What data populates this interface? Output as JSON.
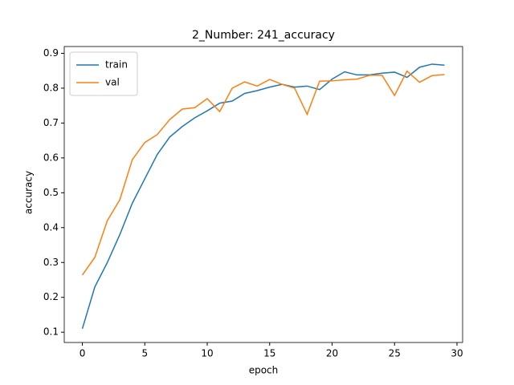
{
  "chart_data": {
    "type": "line",
    "title": "2_Number: 241_accuracy",
    "x_label": "epoch",
    "y_label": "accuracy",
    "x": [
      0,
      1,
      2,
      3,
      4,
      5,
      6,
      7,
      8,
      9,
      10,
      11,
      12,
      13,
      14,
      15,
      16,
      17,
      18,
      19,
      20,
      21,
      22,
      23,
      24,
      25,
      26,
      27,
      28,
      29
    ],
    "series": [
      {
        "name": "train",
        "color": "#1f77b4",
        "values": [
          0.11,
          0.23,
          0.3,
          0.38,
          0.47,
          0.54,
          0.61,
          0.66,
          0.69,
          0.715,
          0.735,
          0.757,
          0.763,
          0.785,
          0.793,
          0.803,
          0.811,
          0.803,
          0.806,
          0.796,
          0.826,
          0.847,
          0.838,
          0.838,
          0.843,
          0.846,
          0.831,
          0.86,
          0.869,
          0.866
        ]
      },
      {
        "name": "val",
        "color": "#ff7f0e",
        "values": [
          0.264,
          0.315,
          0.42,
          0.48,
          0.595,
          0.644,
          0.667,
          0.71,
          0.74,
          0.744,
          0.77,
          0.733,
          0.8,
          0.818,
          0.806,
          0.825,
          0.811,
          0.8,
          0.725,
          0.82,
          0.821,
          0.824,
          0.826,
          0.837,
          0.837,
          0.779,
          0.849,
          0.817,
          0.836,
          0.839
        ]
      }
    ],
    "xlim": [
      -1.45,
      30.45
    ],
    "ylim": [
      0.0705,
      0.9195
    ],
    "xticks": [
      0,
      5,
      10,
      15,
      20,
      25,
      30
    ],
    "yticks": [
      0.1,
      0.2,
      0.3,
      0.4,
      0.5,
      0.6,
      0.7,
      0.8,
      0.9
    ],
    "legend": "upper left"
  }
}
